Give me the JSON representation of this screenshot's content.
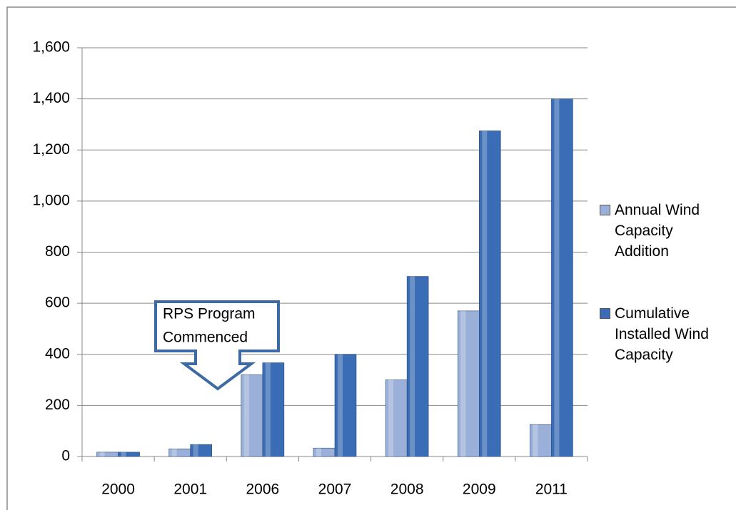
{
  "chart_data": {
    "type": "bar",
    "categories": [
      "2000",
      "2001",
      "2006",
      "2007",
      "2008",
      "2009",
      "2011"
    ],
    "series": [
      {
        "name": "Annual Wind Capacity Addition",
        "color": "#9bb0d8",
        "values": [
          17,
          30,
          320,
          33,
          300,
          570,
          125
        ]
      },
      {
        "name": "Cumulative Installed Wind Capacity",
        "color": "#3a6db5",
        "values": [
          17,
          47,
          367,
          400,
          705,
          1275,
          1400
        ]
      }
    ],
    "ylim": [
      0,
      1600
    ],
    "yticks": [
      0,
      200,
      400,
      600,
      800,
      {
        "value": 1000,
        "label": "1,000"
      },
      {
        "value": 1200,
        "label": "1,200"
      },
      {
        "value": 1400,
        "label": "1,400"
      },
      {
        "value": 1600,
        "label": "1,600"
      }
    ],
    "grid": true,
    "legend": "right",
    "annotation": {
      "lines": [
        "RPS Program",
        "Commenced"
      ]
    }
  }
}
